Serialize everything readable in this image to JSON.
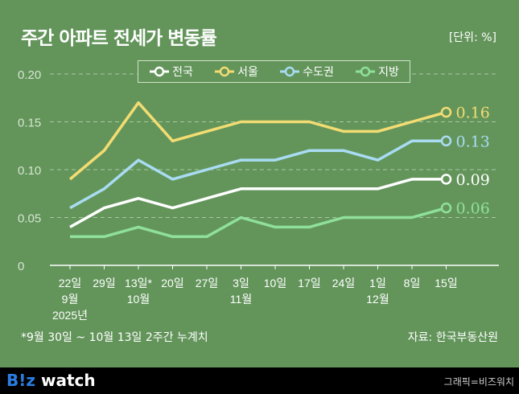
{
  "chart_data": {
    "type": "line",
    "title": "주간 아파트 전세가 변동률",
    "unit": "[단위: %]",
    "ylim": [
      0,
      0.2
    ],
    "yticks": [
      "0",
      "0.05",
      "0.10",
      "0.15",
      "0.20"
    ],
    "grid": true,
    "legend_placement": "top-center",
    "categories": [
      {
        "day": "22일",
        "month": "9월",
        "year": "2025년"
      },
      {
        "day": "29일"
      },
      {
        "day": "13일*",
        "month": "10월"
      },
      {
        "day": "20일"
      },
      {
        "day": "27일"
      },
      {
        "day": "3일",
        "month": "11월"
      },
      {
        "day": "10일"
      },
      {
        "day": "17일"
      },
      {
        "day": "24일"
      },
      {
        "day": "1일",
        "month": "12월"
      },
      {
        "day": "8일"
      },
      {
        "day": "15일"
      }
    ],
    "series": [
      {
        "name": "전국",
        "color": "#ffffff",
        "values": [
          0.04,
          0.06,
          0.07,
          0.06,
          0.07,
          0.08,
          0.08,
          0.08,
          0.08,
          0.08,
          0.09,
          0.09
        ],
        "end_label": "0.09"
      },
      {
        "name": "서울",
        "color": "#f3dc72",
        "values": [
          0.09,
          0.12,
          0.17,
          0.13,
          0.14,
          0.15,
          0.15,
          0.15,
          0.14,
          0.14,
          0.15,
          0.16
        ],
        "end_label": "0.16"
      },
      {
        "name": "수도권",
        "color": "#a9dcf2",
        "values": [
          0.06,
          0.08,
          0.11,
          0.09,
          0.1,
          0.11,
          0.11,
          0.12,
          0.12,
          0.11,
          0.13,
          0.13
        ],
        "end_label": "0.13"
      },
      {
        "name": "지방",
        "color": "#8fe09a",
        "values": [
          0.03,
          0.03,
          0.04,
          0.03,
          0.03,
          0.05,
          0.04,
          0.04,
          0.05,
          0.05,
          0.05,
          0.06
        ],
        "end_label": "0.06"
      }
    ]
  },
  "note": "*9월 30일 ~ 10월 13일 2주간 누계치",
  "source": "자료: 한국부동산원",
  "footer": {
    "logo": "B!z watch",
    "credit": "그래픽=비즈워치"
  }
}
